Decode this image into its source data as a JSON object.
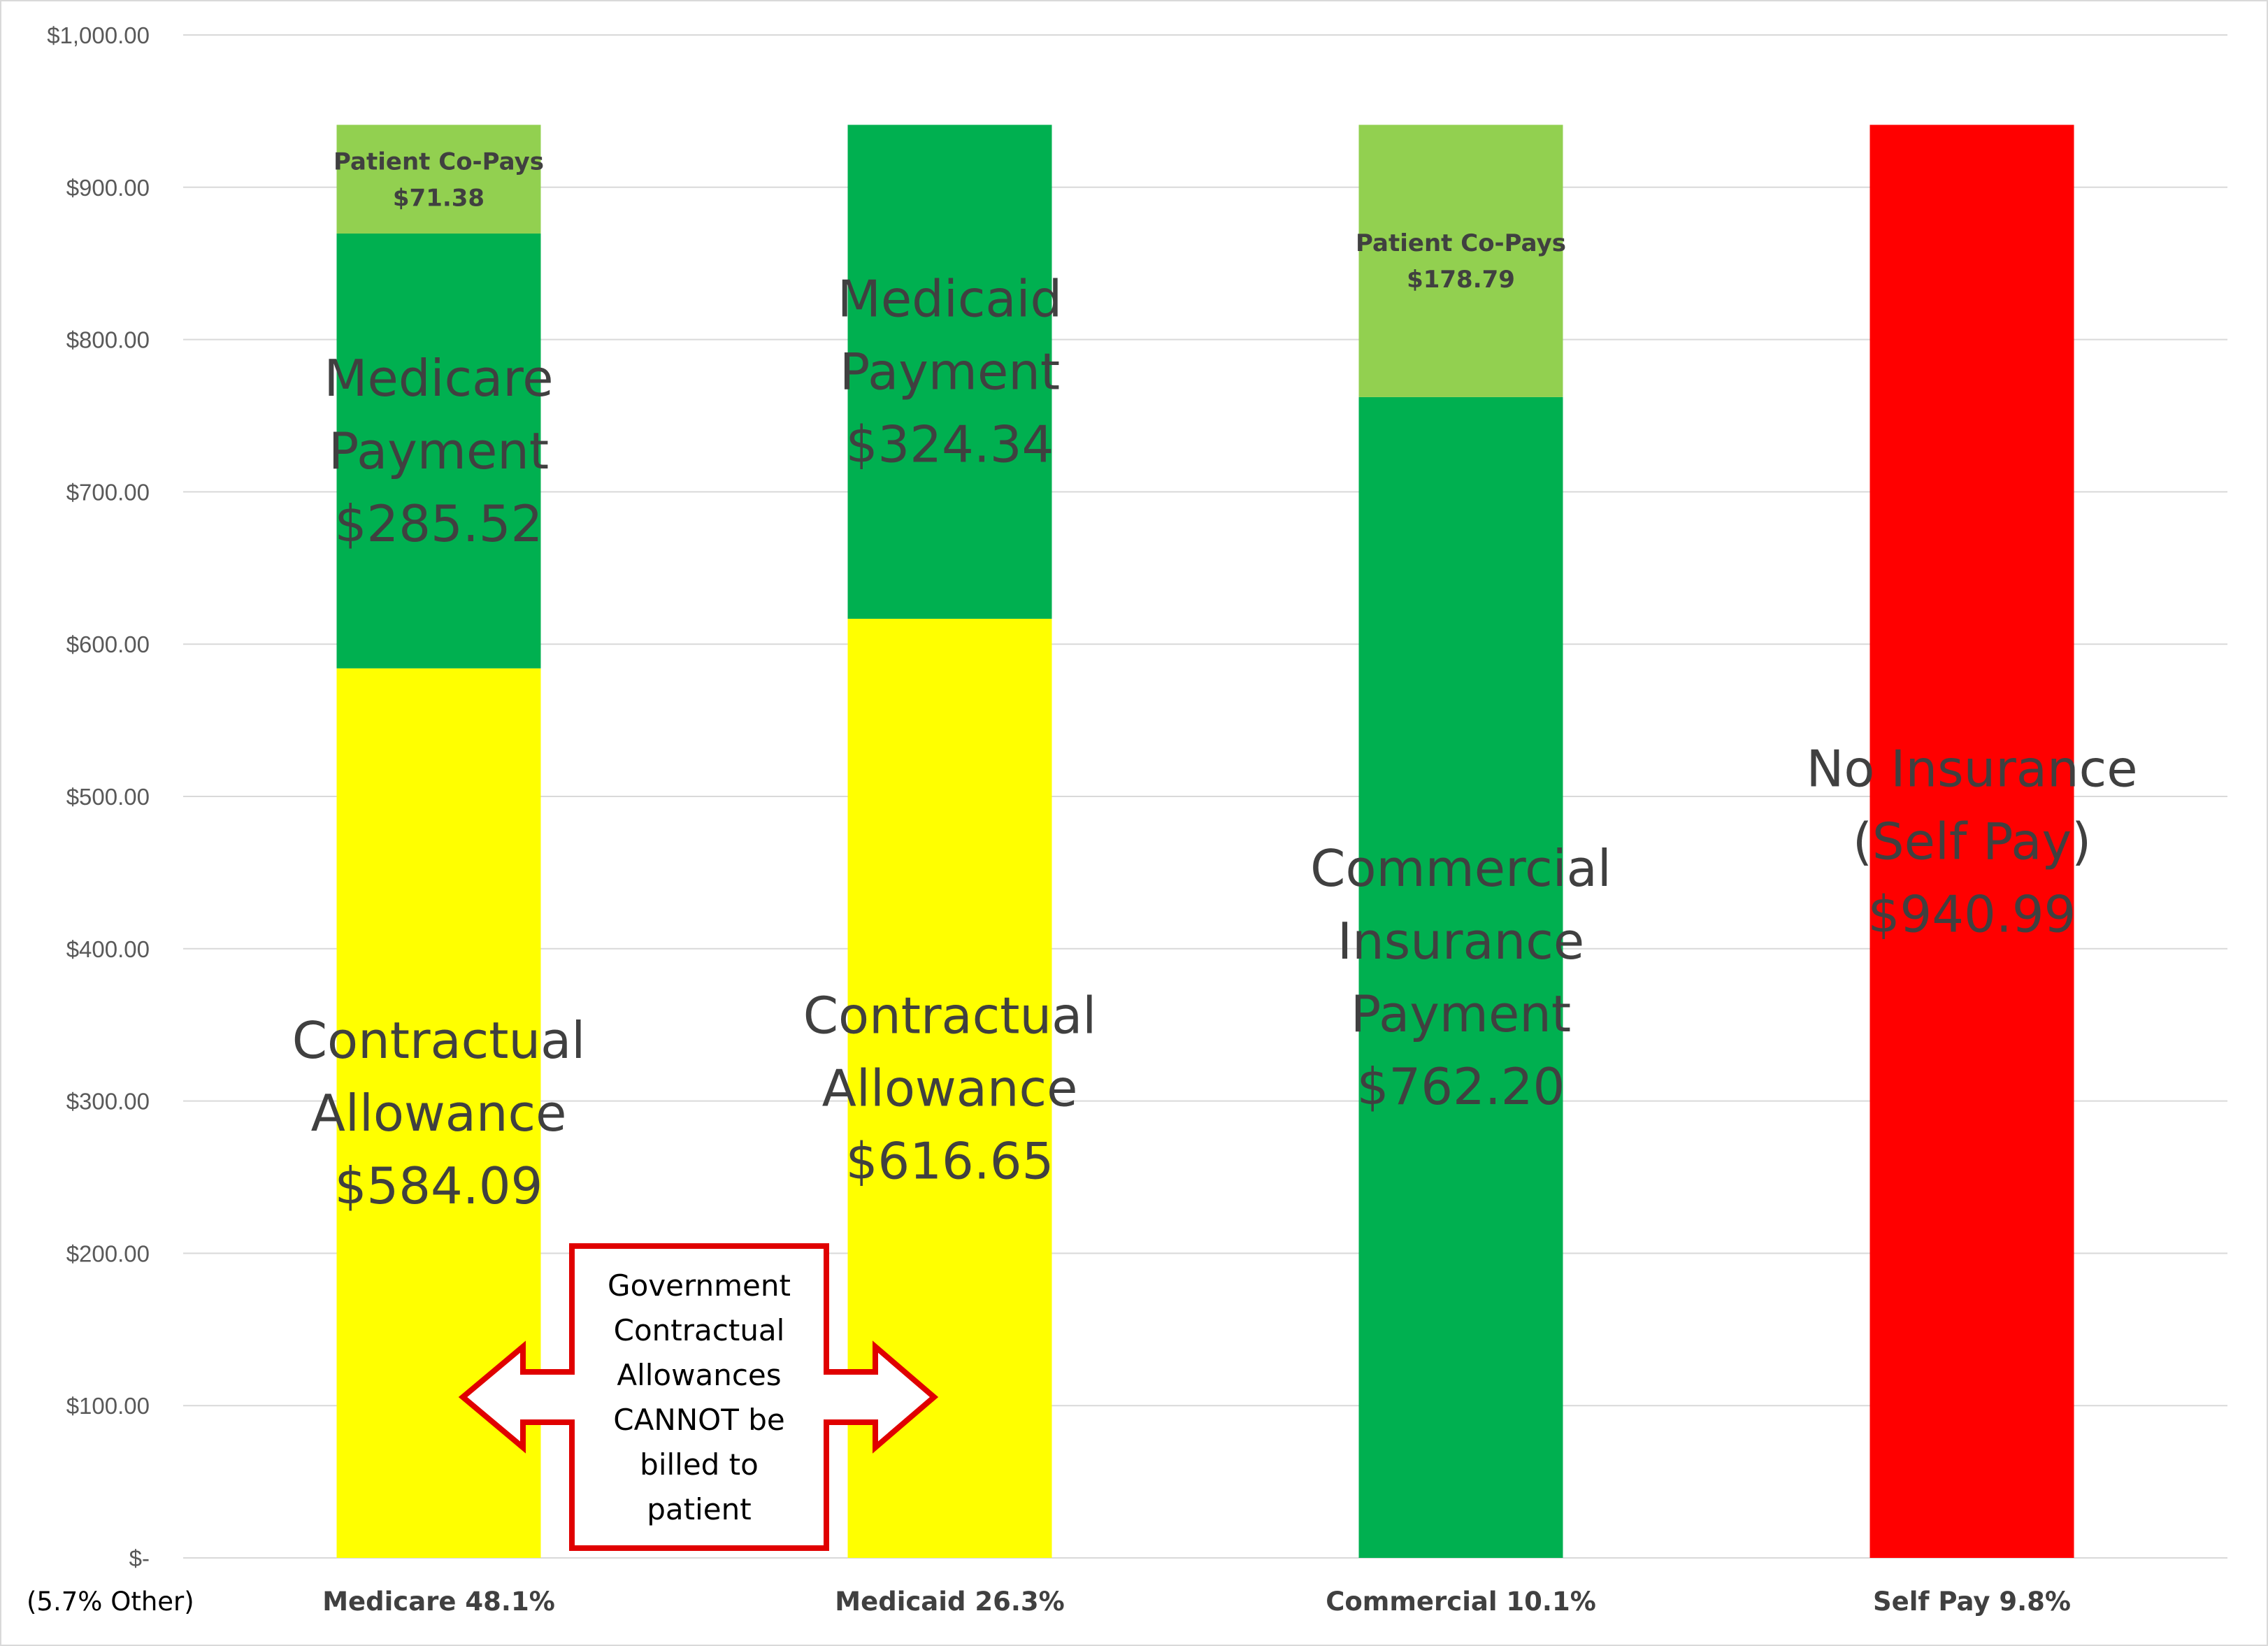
{
  "chart_data": {
    "type": "bar",
    "stacked": true,
    "categories": [
      "Medicare 48.1%",
      "Medicaid 26.3%",
      "Commercial 10.1%",
      "Self Pay 9.8%"
    ],
    "category_note": "(5.7% Other)",
    "ylim": [
      0,
      1000
    ],
    "yticks": [
      {
        "value": 0,
        "label": "$-"
      },
      {
        "value": 100,
        "label": "$100.00"
      },
      {
        "value": 200,
        "label": "$200.00"
      },
      {
        "value": 300,
        "label": "$300.00"
      },
      {
        "value": 400,
        "label": "$400.00"
      },
      {
        "value": 500,
        "label": "$500.00"
      },
      {
        "value": 600,
        "label": "$600.00"
      },
      {
        "value": 700,
        "label": "$700.00"
      },
      {
        "value": 800,
        "label": "$800.00"
      },
      {
        "value": 900,
        "label": "$900.00"
      },
      {
        "value": 1000,
        "label": "$1,000.00"
      }
    ],
    "grid": true,
    "bars": [
      {
        "category_index": 0,
        "segments": [
          {
            "value": 584.09,
            "color": "#ffff00",
            "style": "big",
            "lines": [
              "Contractual",
              "Allowance",
              "$584.09"
            ]
          },
          {
            "value": 285.52,
            "color": "#00b050",
            "style": "big",
            "lines": [
              "Medicare",
              "Payment",
              "$285.52"
            ]
          },
          {
            "value": 71.38,
            "color": "#92d050",
            "style": "small",
            "lines": [
              "Patient Co-Pays",
              "$71.38"
            ]
          }
        ]
      },
      {
        "category_index": 1,
        "segments": [
          {
            "value": 616.65,
            "color": "#ffff00",
            "style": "big",
            "lines": [
              "Contractual",
              "Allowance",
              "$616.65"
            ]
          },
          {
            "value": 324.34,
            "color": "#00b050",
            "style": "big",
            "lines": [
              "Medicaid",
              "Payment",
              "$324.34"
            ]
          }
        ]
      },
      {
        "category_index": 2,
        "segments": [
          {
            "value": 762.2,
            "color": "#00b050",
            "style": "big",
            "lines": [
              "Commercial",
              "Insurance",
              "Payment",
              "$762.20"
            ]
          },
          {
            "value": 178.79,
            "color": "#92d050",
            "style": "small",
            "lines": [
              "Patient Co-Pays",
              "$178.79"
            ]
          }
        ]
      },
      {
        "category_index": 3,
        "segments": [
          {
            "value": 940.99,
            "color": "#ff0000",
            "style": "big",
            "lines": [
              "No Insurance",
              "(Self Pay)",
              "$940.99"
            ]
          }
        ]
      }
    ],
    "callout": {
      "lines": [
        "Government",
        "Contractual",
        "Allowances",
        "CANNOT be",
        "billed to",
        "patient"
      ],
      "border_color": "#e00000"
    }
  }
}
